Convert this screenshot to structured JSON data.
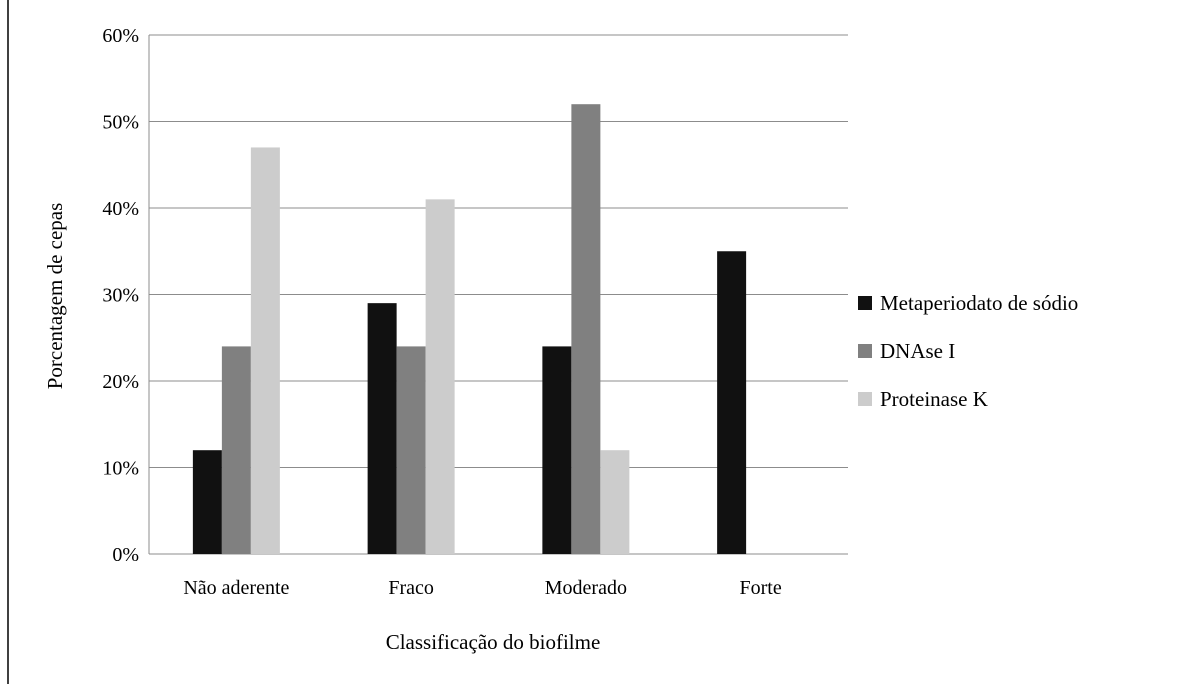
{
  "chart_data": {
    "type": "bar",
    "title": "",
    "xlabel": "Classificação do biofilme",
    "ylabel": "Porcentagem de cepas",
    "categories": [
      "Não aderente",
      "Fraco",
      "Moderado",
      "Forte"
    ],
    "series": [
      {
        "name": "Metaperiodato de sódio",
        "color": "#111111",
        "values": [
          12,
          29,
          24,
          35
        ]
      },
      {
        "name": "DNAse I",
        "color": "#808080",
        "values": [
          24,
          24,
          52,
          0
        ]
      },
      {
        "name": "Proteinase K",
        "color": "#cccccc",
        "values": [
          47,
          41,
          12,
          0
        ]
      }
    ],
    "ylim": [
      0,
      60
    ],
    "yticks": [
      "0%",
      "10%",
      "20%",
      "30%",
      "40%",
      "50%",
      "60%"
    ],
    "grid": true,
    "legend_position": "right"
  }
}
